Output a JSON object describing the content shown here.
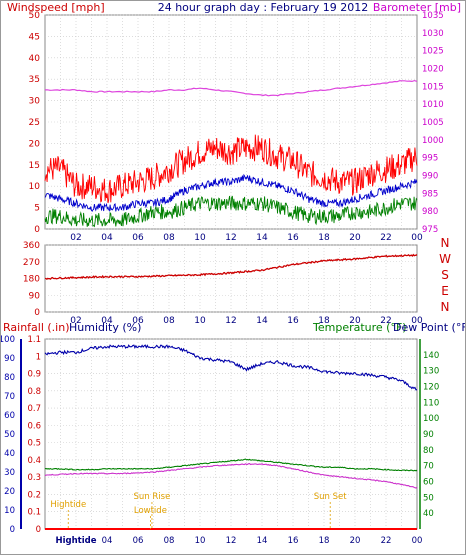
{
  "title": "24 hour graph day : February 19 2012",
  "chart_data": [
    {
      "type": "line",
      "panel": "wind-barometer",
      "left_axis_label": "Windspeed [mph]",
      "right_axis_label": "Barometer [mb]",
      "left_ylim": [
        0,
        50
      ],
      "left_ticks": [
        "0",
        "5",
        "10",
        "15",
        "20",
        "25",
        "30",
        "35",
        "40",
        "45",
        "50"
      ],
      "right_ylim": [
        975,
        1035
      ],
      "right_ticks": [
        "975",
        "980",
        "985",
        "990",
        "995",
        "1000",
        "1005",
        "1010",
        "1015",
        "1020",
        "1025",
        "1030",
        "1035"
      ],
      "x_ticks": [
        "02",
        "04",
        "06",
        "08",
        "10",
        "12",
        "14",
        "16",
        "18",
        "20",
        "22",
        "00"
      ],
      "x": [
        0,
        1,
        2,
        3,
        4,
        5,
        6,
        7,
        8,
        9,
        10,
        11,
        12,
        13,
        14,
        15,
        16,
        17,
        18,
        19,
        20,
        21,
        22,
        23,
        24
      ],
      "series": [
        {
          "role": "barometer",
          "color": "#dd44dd",
          "values": [
            1014,
            1014,
            1014,
            1013.5,
            1013.5,
            1013.5,
            1013.5,
            1013.5,
            1014,
            1014,
            1014.5,
            1014,
            1013.5,
            1013,
            1012.5,
            1012.5,
            1013,
            1013.5,
            1014,
            1014.5,
            1015,
            1015.5,
            1016,
            1016.5,
            1016.5
          ]
        },
        {
          "role": "gust",
          "color": "#ff0000",
          "values": [
            14,
            14,
            10,
            10,
            9,
            10,
            11,
            12,
            14,
            16,
            18,
            19,
            18,
            19,
            19,
            17,
            16,
            13,
            12,
            11,
            11,
            13,
            14,
            15,
            17
          ]
        },
        {
          "role": "average",
          "color": "#0000cc",
          "values": [
            8,
            7,
            6,
            5,
            5,
            5,
            6,
            6,
            7,
            9,
            10,
            11,
            11,
            12,
            11,
            10,
            9,
            7,
            6,
            6,
            7,
            8,
            9,
            10,
            11
          ]
        },
        {
          "role": "minimum",
          "color": "#008000",
          "values": [
            3,
            3,
            2,
            2,
            2,
            2,
            3,
            4,
            4,
            5,
            6,
            6,
            6,
            6,
            6,
            5,
            4,
            3,
            3,
            3,
            4,
            4,
            5,
            6,
            6
          ]
        }
      ]
    },
    {
      "type": "line",
      "panel": "wind-direction",
      "ylim": [
        0,
        360
      ],
      "left_ticks": [
        "0",
        "90",
        "180",
        "270",
        "360"
      ],
      "right_ticks": [
        "N",
        "W",
        "S",
        "E",
        "N"
      ],
      "x_ticks": [
        "02",
        "04",
        "06",
        "08",
        "10",
        "12",
        "14",
        "16",
        "18",
        "20",
        "22",
        "00"
      ],
      "x": [
        0,
        2,
        4,
        6,
        8,
        10,
        12,
        14,
        16,
        18,
        20,
        22,
        24
      ],
      "series": [
        {
          "role": "direction",
          "color": "#cc0000",
          "values": [
            180,
            185,
            190,
            190,
            195,
            200,
            210,
            225,
            255,
            275,
            285,
            300,
            305
          ]
        }
      ]
    },
    {
      "type": "line",
      "panel": "rain-humidity-temp",
      "rain_label": "Rainfall (.in)",
      "humidity_label": "Humidity (%)",
      "temperature_label": "Temperature (°F)",
      "dewpoint_label": "Dew Point (°F)",
      "humidity_ylim": [
        0,
        100
      ],
      "humidity_ticks": [
        "0",
        "10",
        "20",
        "30",
        "40",
        "50",
        "60",
        "70",
        "80",
        "90",
        "100"
      ],
      "rain_ylim": [
        0,
        1.1
      ],
      "rain_ticks": [
        "0",
        "0.1",
        "0.2",
        "0.3",
        "0.4",
        "0.5",
        "0.6",
        "0.7",
        "0.8",
        "0.9",
        "1",
        "1.1"
      ],
      "temp_ylim": [
        30,
        150
      ],
      "temp_ticks": [
        "40",
        "50",
        "60",
        "70",
        "80",
        "90",
        "100",
        "110",
        "120",
        "130",
        "140"
      ],
      "x_ticks": [
        "Hightide",
        "04",
        "06",
        "08",
        "10",
        "12",
        "14",
        "16",
        "18",
        "20",
        "22",
        "00"
      ],
      "x": [
        0,
        1,
        2,
        3,
        4,
        5,
        6,
        7,
        8,
        9,
        10,
        11,
        12,
        13,
        14,
        15,
        16,
        17,
        18,
        19,
        20,
        21,
        22,
        23,
        24
      ],
      "series": [
        {
          "role": "humidity",
          "color": "#0000aa",
          "values": [
            92,
            93,
            93,
            95,
            96,
            96,
            96,
            96,
            96,
            94,
            90,
            89,
            88,
            84,
            87,
            88,
            86,
            85,
            83,
            82,
            82,
            81,
            80,
            78,
            73
          ]
        },
        {
          "role": "temperature",
          "color": "#008000",
          "values": [
            68,
            68,
            67.5,
            67.5,
            68,
            68,
            68,
            68,
            69,
            70,
            71,
            72,
            73,
            74,
            73,
            72,
            71,
            70,
            69,
            69,
            68,
            68,
            67.5,
            67,
            67
          ]
        },
        {
          "role": "dewpoint",
          "color": "#cc33cc",
          "values": [
            64,
            64.5,
            65,
            65,
            65,
            65,
            65.5,
            66,
            67,
            68,
            69,
            70,
            70.5,
            71,
            71,
            70,
            68,
            66,
            64,
            63,
            62,
            61,
            60,
            58,
            56
          ]
        },
        {
          "role": "rainfall",
          "color": "#ff0000",
          "values": [
            0,
            0,
            0,
            0,
            0,
            0,
            0,
            0,
            0,
            0,
            0,
            0,
            0,
            0,
            0,
            0,
            0,
            0,
            0,
            0,
            0,
            0,
            0,
            0,
            0
          ]
        }
      ],
      "annotations": [
        {
          "text": "Hightide",
          "x": 1.5
        },
        {
          "text": "Sun Rise",
          "x": 6.9
        },
        {
          "text": "Lowtide",
          "x": 6.8
        },
        {
          "text": "Sun Set",
          "x": 18.4
        }
      ]
    }
  ]
}
